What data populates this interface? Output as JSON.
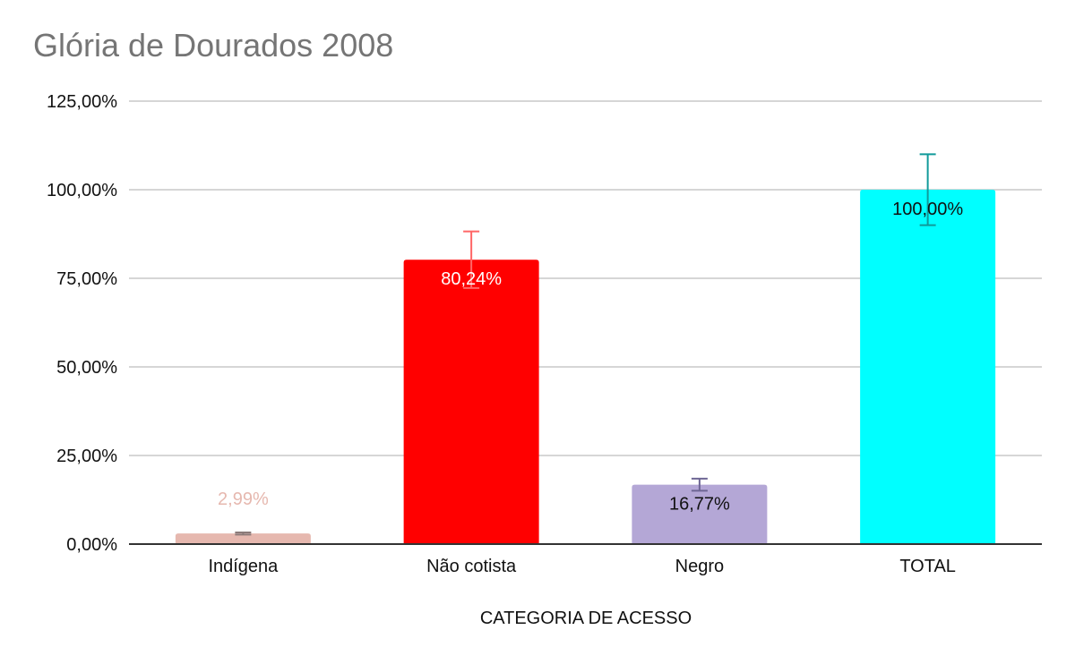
{
  "chart_data": {
    "type": "bar",
    "title": "Glória de Dourados 2008",
    "xlabel": "CATEGORIA DE ACESSO",
    "ylabel": "",
    "ylim": [
      0,
      125
    ],
    "yticks": [
      0,
      25,
      50,
      75,
      100,
      125
    ],
    "ytick_labels": [
      "0,00%",
      "25,00%",
      "50,00%",
      "75,00%",
      "100,00%",
      "125,00%"
    ],
    "categories": [
      "Indígena",
      "Não cotista",
      "Negro",
      "TOTAL"
    ],
    "values": [
      2.99,
      80.24,
      16.77,
      100.0
    ],
    "data_labels": [
      "2,99%",
      "80,24%",
      "16,77%",
      "100,00%"
    ],
    "error_bars": [
      0.3,
      8.0,
      1.7,
      10.0
    ],
    "colors": [
      "#e6b8af",
      "#ff0000",
      "#b4a7d6",
      "#00ffff"
    ],
    "error_bar_colors": [
      "#8a7a78",
      "#ff6666",
      "#6e6694",
      "#119a9a"
    ],
    "data_label_colors": [
      "#e6b8af",
      "#ffffff",
      "#111111",
      "#111111"
    ],
    "grid": true,
    "legend": "none"
  }
}
